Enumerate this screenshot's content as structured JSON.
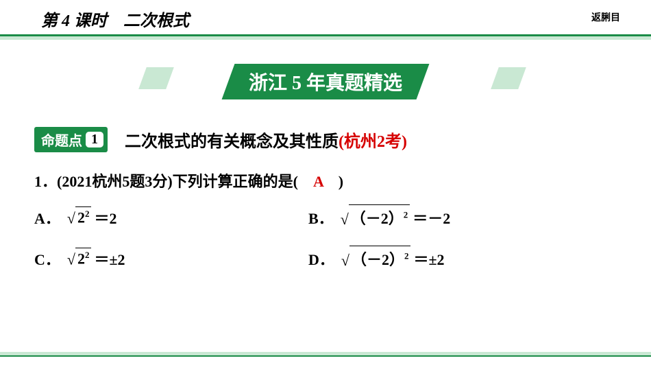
{
  "header": {
    "lesson": "第 4 课时　二次根式",
    "returnLink": "返脷目"
  },
  "banner": {
    "text": "浙江 5 年真题精选"
  },
  "topic": {
    "tagLabel": "命题点",
    "number": "1",
    "title": "二次根式的有关概念及其性质",
    "note": "(杭州2考)"
  },
  "question": {
    "number": "1．",
    "source": "(2021杭州5题3分)",
    "stem": "下列计算正确的是(　",
    "answer": "A",
    "stemEnd": "　)"
  },
  "options": {
    "A": {
      "label": "A．",
      "radicand_base": "2",
      "radicand_exp": "2",
      "result": "＝2"
    },
    "B": {
      "label": "B．",
      "radicand_base": "（－2）",
      "radicand_exp": "2",
      "result": "＝－2"
    },
    "C": {
      "label": "C．",
      "radicand_base": "2",
      "radicand_exp": "2",
      "result": "＝±2"
    },
    "D": {
      "label": "D．",
      "radicand_base": "（－2）",
      "radicand_exp": "2",
      "result": "＝±2"
    }
  },
  "colors": {
    "green": "#1a8c47",
    "lightGreen": "#c9e8d3",
    "red": "#d60000"
  }
}
